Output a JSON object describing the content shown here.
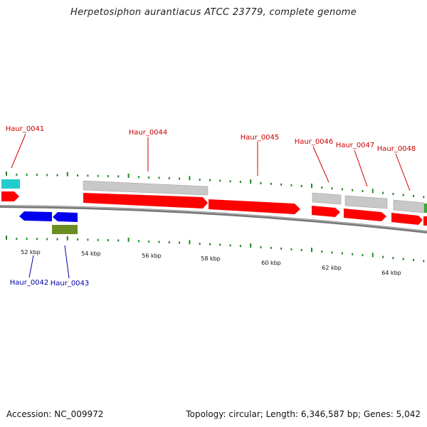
{
  "title": "Herpetosiphon aurantiacus ATCC 23779, complete genome",
  "footer": {
    "accession": "Accession: NC_009972",
    "summary": "Topology: circular; Length: 6,346,587 bp; Genes: 5,042"
  },
  "colors": {
    "forward_cds": "#ff0000",
    "reverse_cds": "#0000ee",
    "gene_gray": "#c8c8c8",
    "cyan": "#22cccc",
    "olive": "#6b8e23",
    "tick": "#228822",
    "backbone": "#777777"
  },
  "gene_labels_top": [
    "Haur_0041",
    "Haur_0044",
    "Haur_0045",
    "Haur_0046",
    "Haur_0047",
    "Haur_0048"
  ],
  "gene_labels_bottom": [
    "Haur_0042",
    "Haur_0043"
  ],
  "kbp_labels": [
    "52 kbp",
    "54 kbp",
    "56 kbp",
    "58 kbp",
    "60 kbp",
    "62 kbp",
    "64 kbp"
  ]
}
